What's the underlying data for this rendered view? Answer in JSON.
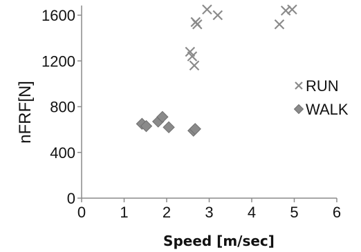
{
  "chart_data": {
    "type": "scatter",
    "xlabel": "Speed [m/sec]",
    "ylabel": "nFRF[N]",
    "xlim": [
      0,
      6
    ],
    "ylim": [
      0,
      1600
    ],
    "x_ticks": [
      0,
      1,
      2,
      3,
      4,
      5,
      6
    ],
    "y_ticks": [
      0,
      400,
      800,
      1200,
      1600
    ],
    "x_tick_labels": [
      "0",
      "1",
      "2",
      "3",
      "4",
      "5",
      "6"
    ],
    "y_tick_labels": [
      "0",
      "400",
      "800",
      "1200",
      "1600"
    ],
    "grid": false,
    "legend_position": "right",
    "series": [
      {
        "name": "RUN",
        "marker": "x",
        "color": "#8a8a8a",
        "x": [
          2.55,
          2.6,
          2.65,
          2.68,
          2.72,
          2.95,
          3.2,
          4.65,
          4.8,
          4.95
        ],
        "y": [
          1280,
          1240,
          1160,
          1540,
          1520,
          1650,
          1600,
          1520,
          1640,
          1650
        ]
      },
      {
        "name": "WALK",
        "marker": "diamond",
        "color": "#8a8a8a",
        "x": [
          1.42,
          1.52,
          1.8,
          1.9,
          2.05,
          2.63,
          2.67
        ],
        "y": [
          650,
          630,
          670,
          710,
          620,
          590,
          605
        ]
      }
    ]
  }
}
